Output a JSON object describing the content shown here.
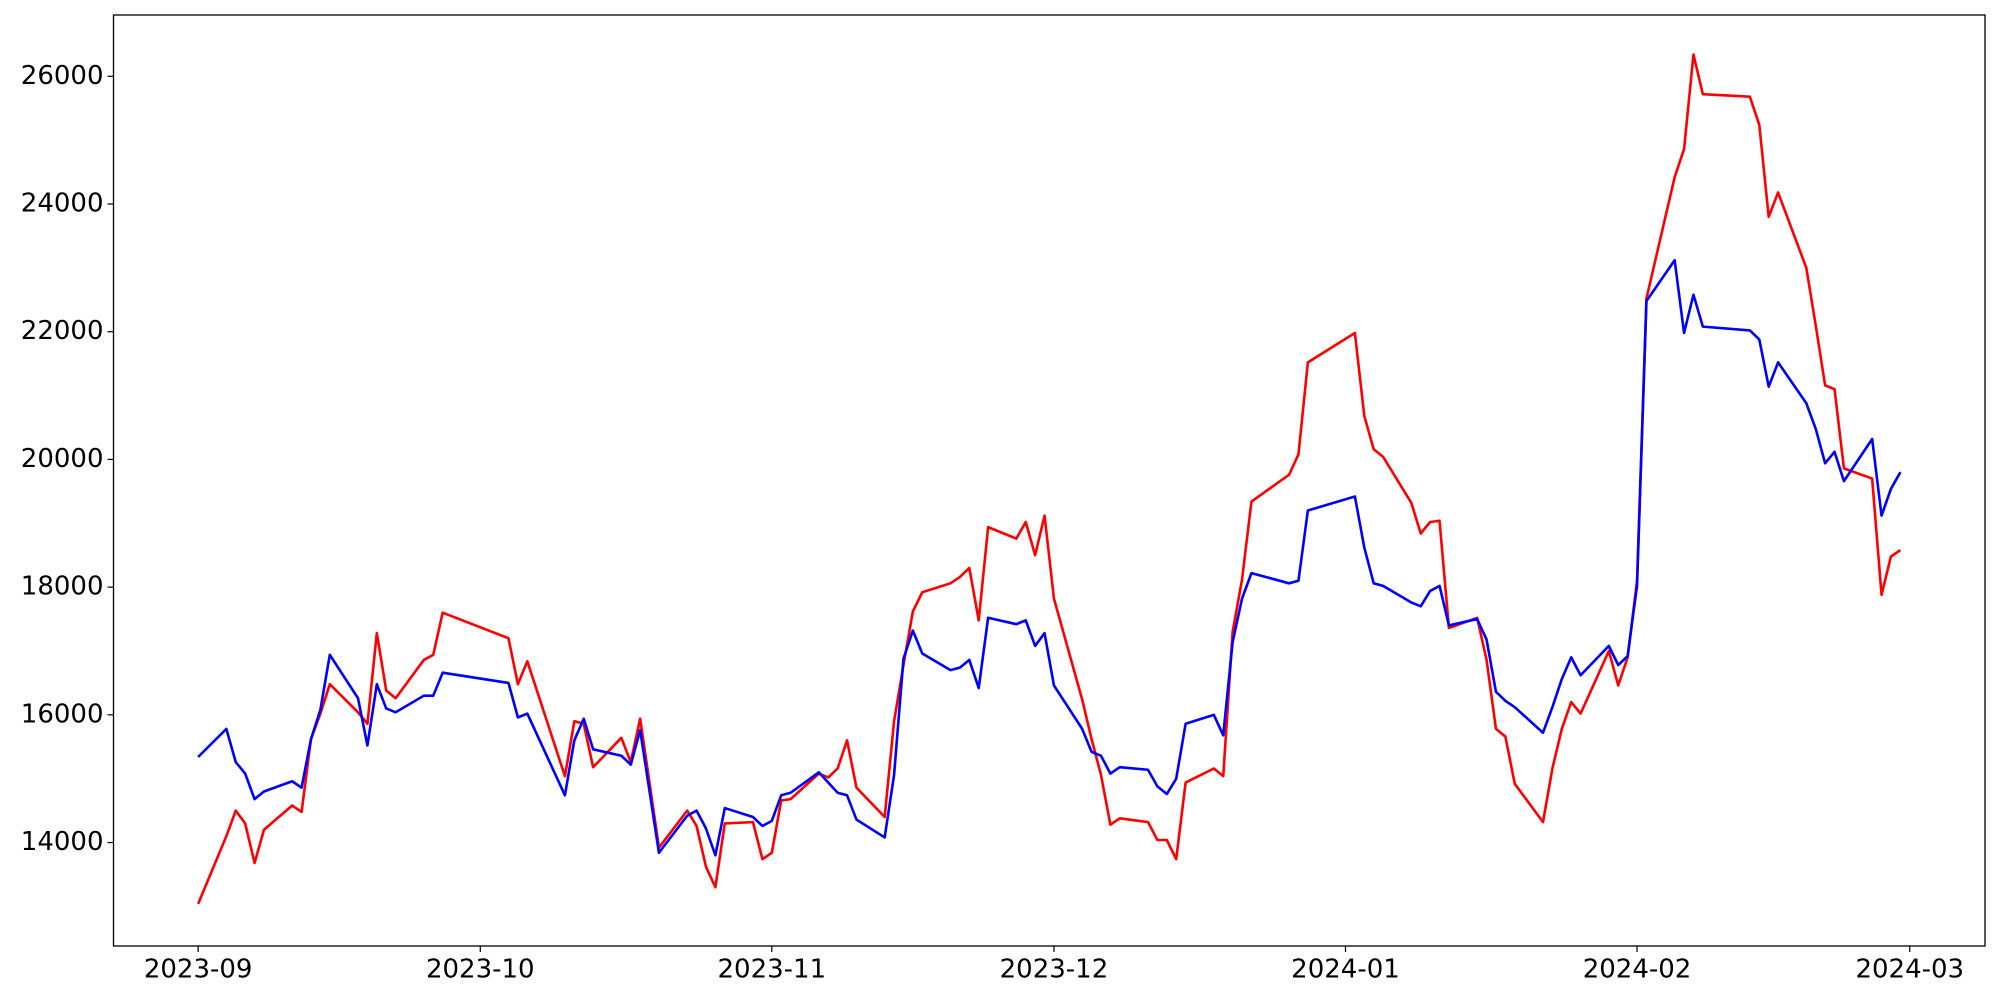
{
  "chart_data": {
    "type": "line",
    "x": [
      0,
      3,
      4,
      5,
      6,
      7,
      10,
      11,
      12,
      13,
      14,
      17,
      18,
      19,
      20,
      21,
      24,
      25,
      26,
      33,
      34,
      35,
      39,
      40,
      41,
      42,
      45,
      46,
      47,
      49,
      52,
      53,
      54,
      55,
      56,
      59,
      60,
      61,
      62,
      63,
      66,
      67,
      68,
      69,
      70,
      73,
      74,
      75,
      76,
      77,
      80,
      81,
      82,
      83,
      84,
      87,
      88,
      89,
      90,
      91,
      94,
      95,
      96,
      97,
      98,
      101,
      102,
      103,
      104,
      105,
      108,
      109,
      110,
      111,
      112,
      116,
      117,
      118,
      123,
      124,
      125,
      126,
      129,
      130,
      131,
      132,
      133,
      136,
      137,
      138,
      139,
      140,
      143,
      144,
      145,
      146,
      147,
      150,
      151,
      152,
      153,
      154,
      157,
      158,
      159,
      160,
      165,
      166,
      167,
      168,
      171,
      172,
      173,
      174,
      175,
      178,
      179,
      180,
      181
    ],
    "series": [
      {
        "color": "#ff0000",
        "values": [
          13040,
          14100,
          14500,
          14300,
          13680,
          14200,
          14580,
          14480,
          15620,
          16020,
          16480,
          16040,
          15860,
          17280,
          16380,
          16260,
          16860,
          16940,
          17600,
          17200,
          16480,
          16840,
          15040,
          15900,
          15860,
          15180,
          15640,
          15260,
          15940,
          13920,
          14500,
          14260,
          13620,
          13300,
          14300,
          14320,
          13740,
          13840,
          14660,
          14680,
          15080,
          15020,
          15160,
          15600,
          14860,
          14400,
          15900,
          16780,
          17620,
          17920,
          18060,
          18160,
          18300,
          17480,
          18940,
          18760,
          19020,
          18500,
          19120,
          17820,
          16240,
          15620,
          15060,
          14280,
          14380,
          14320,
          14040,
          14040,
          13740,
          14940,
          15160,
          15040,
          17300,
          18120,
          19340,
          19760,
          20080,
          21520,
          21980,
          20680,
          20160,
          20040,
          19320,
          18840,
          19020,
          19040,
          17360,
          17520,
          16860,
          15780,
          15660,
          14920,
          14320,
          15160,
          15780,
          16200,
          16020,
          17000,
          16460,
          16900,
          18100,
          22520,
          24420,
          24860,
          26340,
          25720,
          25680,
          25240,
          23800,
          24180,
          23000,
          22100,
          21160,
          21100,
          19860,
          19700,
          17880,
          18480,
          18580
        ]
      },
      {
        "color": "#0000ff",
        "values": [
          15340,
          15780,
          15260,
          15080,
          14680,
          14800,
          14960,
          14860,
          15620,
          16080,
          16940,
          16260,
          15520,
          16480,
          16100,
          16040,
          16300,
          16300,
          16660,
          16500,
          15960,
          16020,
          14740,
          15600,
          15940,
          15460,
          15360,
          15220,
          15760,
          13840,
          14420,
          14500,
          14220,
          13800,
          14540,
          14400,
          14260,
          14340,
          14740,
          14780,
          15100,
          14940,
          14780,
          14740,
          14360,
          14080,
          15060,
          16880,
          17320,
          16960,
          16700,
          16740,
          16860,
          16420,
          17520,
          17420,
          17480,
          17080,
          17280,
          16460,
          15780,
          15420,
          15360,
          15080,
          15180,
          15140,
          14880,
          14760,
          15000,
          15860,
          16000,
          15680,
          17140,
          17820,
          18220,
          18060,
          18100,
          19200,
          19420,
          18620,
          18060,
          18020,
          17760,
          17700,
          17940,
          18020,
          17400,
          17500,
          17180,
          16360,
          16220,
          16120,
          15720,
          16120,
          16560,
          16900,
          16620,
          17080,
          16780,
          16920,
          18020,
          22480,
          23120,
          21980,
          22580,
          22080,
          22020,
          21880,
          21140,
          21520,
          20880,
          20480,
          19940,
          20120,
          19660,
          20320,
          19120,
          19540,
          19800
        ]
      }
    ],
    "xlim": [
      -9,
      190
    ],
    "xticks": [
      {
        "value": 0,
        "label": "2023-09"
      },
      {
        "value": 30,
        "label": "2023-10"
      },
      {
        "value": 61,
        "label": "2023-11"
      },
      {
        "value": 91,
        "label": "2023-12"
      },
      {
        "value": 122,
        "label": "2024-01"
      },
      {
        "value": 153,
        "label": "2024-02"
      },
      {
        "value": 182,
        "label": "2024-03"
      }
    ],
    "ylim": [
      12380,
      26960
    ],
    "yticks": [
      14000,
      16000,
      18000,
      20000,
      22000,
      24000,
      26000
    ],
    "grid": false
  }
}
